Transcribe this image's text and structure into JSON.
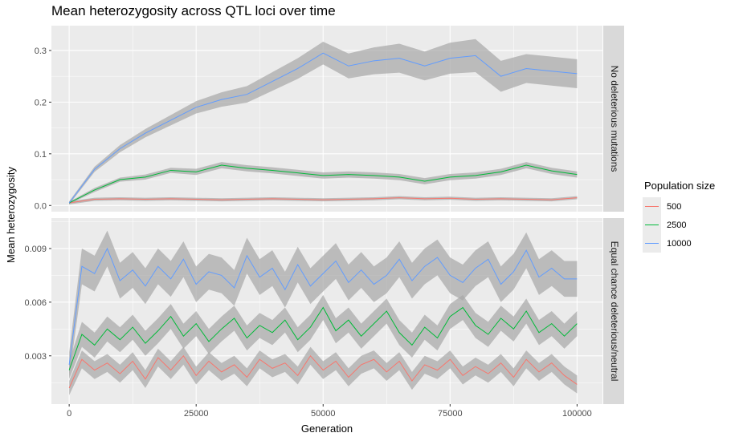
{
  "chart_data": {
    "type": "line",
    "title": "Mean heterozygosity across QTL loci over time",
    "xlabel": "Generation",
    "ylabel": "Mean heterozygosity",
    "xlim": [
      -3500,
      105000
    ],
    "x_ticks": [
      0,
      25000,
      50000,
      75000,
      100000
    ],
    "x_tick_labels": [
      "0",
      "25000",
      "50000",
      "75000",
      "100000"
    ],
    "legend": {
      "title": "Population size",
      "position": "right",
      "entries": [
        {
          "label": "500",
          "color": "#F8766D"
        },
        {
          "label": "2500",
          "color": "#00BA38"
        },
        {
          "label": "10000",
          "color": "#619CFF"
        }
      ]
    },
    "confidence_band_color": "#a6a6a6",
    "panel_background": "#ebebeb",
    "strip_background": "#d9d9d9",
    "grid": true,
    "panels": [
      {
        "strip_label": "No deleterious mutations",
        "ylim": [
          -0.012,
          0.348
        ],
        "y_ticks": [
          0.0,
          0.1,
          0.2,
          0.3
        ],
        "y_tick_labels": [
          "0.0",
          "0.1",
          "0.2",
          "0.3"
        ],
        "series": [
          {
            "name": "500",
            "color": "#F8766D",
            "x": [
              0,
              5000,
              10000,
              15000,
              20000,
              25000,
              30000,
              35000,
              40000,
              45000,
              50000,
              55000,
              60000,
              65000,
              70000,
              75000,
              80000,
              85000,
              90000,
              95000,
              100000
            ],
            "y": [
              0.005,
              0.012,
              0.013,
              0.012,
              0.013,
              0.012,
              0.011,
              0.012,
              0.013,
              0.012,
              0.011,
              0.012,
              0.013,
              0.015,
              0.013,
              0.014,
              0.012,
              0.013,
              0.012,
              0.011,
              0.015
            ],
            "band": [
              0.003,
              0.003,
              0.003,
              0.003,
              0.003,
              0.003,
              0.003,
              0.003,
              0.003,
              0.003,
              0.003,
              0.003,
              0.003,
              0.003,
              0.003,
              0.003,
              0.003,
              0.003,
              0.003,
              0.003,
              0.003
            ]
          },
          {
            "name": "2500",
            "color": "#00BA38",
            "x": [
              0,
              5000,
              10000,
              15000,
              20000,
              25000,
              30000,
              35000,
              40000,
              45000,
              50000,
              55000,
              60000,
              65000,
              70000,
              75000,
              80000,
              85000,
              90000,
              95000,
              100000
            ],
            "y": [
              0.005,
              0.03,
              0.05,
              0.055,
              0.068,
              0.065,
              0.078,
              0.072,
              0.068,
              0.063,
              0.058,
              0.06,
              0.058,
              0.055,
              0.047,
              0.055,
              0.058,
              0.065,
              0.078,
              0.067,
              0.06
            ],
            "band": [
              0.002,
              0.004,
              0.004,
              0.005,
              0.005,
              0.006,
              0.006,
              0.006,
              0.006,
              0.006,
              0.006,
              0.006,
              0.006,
              0.006,
              0.006,
              0.006,
              0.006,
              0.006,
              0.006,
              0.006,
              0.006
            ]
          },
          {
            "name": "10000",
            "color": "#619CFF",
            "x": [
              0,
              5000,
              10000,
              15000,
              20000,
              25000,
              30000,
              35000,
              40000,
              45000,
              50000,
              55000,
              60000,
              65000,
              70000,
              75000,
              80000,
              85000,
              90000,
              95000,
              100000
            ],
            "y": [
              0.005,
              0.07,
              0.11,
              0.14,
              0.165,
              0.19,
              0.205,
              0.215,
              0.24,
              0.265,
              0.295,
              0.27,
              0.28,
              0.285,
              0.27,
              0.285,
              0.29,
              0.25,
              0.265,
              0.26,
              0.255
            ],
            "band": [
              0.003,
              0.005,
              0.007,
              0.008,
              0.01,
              0.012,
              0.014,
              0.016,
              0.018,
              0.02,
              0.022,
              0.024,
              0.026,
              0.028,
              0.028,
              0.03,
              0.032,
              0.03,
              0.028,
              0.028,
              0.028
            ]
          }
        ]
      },
      {
        "strip_label": "Equal chance deleterious/neutral",
        "ylim": [
          0.0003,
          0.0107
        ],
        "y_ticks": [
          0.003,
          0.006,
          0.009
        ],
        "y_tick_labels": [
          "0.003",
          "0.006",
          "0.009"
        ],
        "series": [
          {
            "name": "500",
            "color": "#F8766D",
            "x": [
              0,
              2500,
              5000,
              7500,
              10000,
              12500,
              15000,
              17500,
              20000,
              22500,
              25000,
              27500,
              30000,
              32500,
              35000,
              37500,
              40000,
              42500,
              45000,
              47500,
              50000,
              52500,
              55000,
              57500,
              60000,
              62500,
              65000,
              67500,
              70000,
              72500,
              75000,
              77500,
              80000,
              82500,
              85000,
              87500,
              90000,
              92500,
              95000,
              97500,
              100000
            ],
            "y": [
              0.0012,
              0.0028,
              0.0022,
              0.0026,
              0.002,
              0.0027,
              0.0017,
              0.0029,
              0.0022,
              0.003,
              0.0019,
              0.0027,
              0.0021,
              0.0025,
              0.0018,
              0.0028,
              0.0023,
              0.0026,
              0.0019,
              0.003,
              0.0022,
              0.0027,
              0.0018,
              0.0025,
              0.0028,
              0.0021,
              0.0027,
              0.0016,
              0.0025,
              0.0022,
              0.0028,
              0.0019,
              0.0024,
              0.002,
              0.0026,
              0.0018,
              0.0028,
              0.0021,
              0.0026,
              0.0019,
              0.0014
            ],
            "band": [
              0.0004,
              0.0005,
              0.0005,
              0.0005,
              0.0005,
              0.0005,
              0.0005,
              0.0005,
              0.0005,
              0.0005,
              0.0005,
              0.0005,
              0.0005,
              0.0005,
              0.0005,
              0.0005,
              0.0005,
              0.0005,
              0.0005,
              0.0005,
              0.0005,
              0.0005,
              0.0005,
              0.0005,
              0.0005,
              0.0005,
              0.0005,
              0.0005,
              0.0005,
              0.0005,
              0.0005,
              0.0005,
              0.0005,
              0.0005,
              0.0005,
              0.0005,
              0.0005,
              0.0005,
              0.0005,
              0.0005,
              0.0005
            ]
          },
          {
            "name": "2500",
            "color": "#00BA38",
            "x": [
              0,
              2500,
              5000,
              7500,
              10000,
              12500,
              15000,
              17500,
              20000,
              22500,
              25000,
              27500,
              30000,
              32500,
              35000,
              37500,
              40000,
              42500,
              45000,
              47500,
              50000,
              52500,
              55000,
              57500,
              60000,
              62500,
              65000,
              67500,
              70000,
              72500,
              75000,
              77500,
              80000,
              82500,
              85000,
              87500,
              90000,
              92500,
              95000,
              97500,
              100000
            ],
            "y": [
              0.0022,
              0.0042,
              0.0036,
              0.0045,
              0.0039,
              0.0046,
              0.0037,
              0.0044,
              0.0052,
              0.0041,
              0.0048,
              0.0038,
              0.0045,
              0.0051,
              0.004,
              0.0047,
              0.0043,
              0.005,
              0.0039,
              0.0046,
              0.0057,
              0.0044,
              0.005,
              0.0041,
              0.0048,
              0.0055,
              0.0043,
              0.0036,
              0.0046,
              0.004,
              0.0052,
              0.0057,
              0.0047,
              0.0042,
              0.0051,
              0.0045,
              0.0055,
              0.0043,
              0.0048,
              0.0041,
              0.0048
            ],
            "band": [
              0.0005,
              0.0007,
              0.0007,
              0.0007,
              0.0007,
              0.0007,
              0.0007,
              0.0007,
              0.0007,
              0.0007,
              0.0007,
              0.0007,
              0.0007,
              0.0007,
              0.0007,
              0.0007,
              0.0007,
              0.0007,
              0.0007,
              0.0007,
              0.0007,
              0.0007,
              0.0007,
              0.0007,
              0.0007,
              0.0007,
              0.0007,
              0.0007,
              0.0007,
              0.0007,
              0.0007,
              0.0007,
              0.0007,
              0.0007,
              0.0007,
              0.0007,
              0.0007,
              0.0007,
              0.0007,
              0.0007,
              0.0007
            ]
          },
          {
            "name": "10000",
            "color": "#619CFF",
            "x": [
              0,
              2500,
              5000,
              7500,
              10000,
              12500,
              15000,
              17500,
              20000,
              22500,
              25000,
              27500,
              30000,
              32500,
              35000,
              37500,
              40000,
              42500,
              45000,
              47500,
              50000,
              52500,
              55000,
              57500,
              60000,
              62500,
              65000,
              67500,
              70000,
              72500,
              75000,
              77500,
              80000,
              82500,
              85000,
              87500,
              90000,
              92500,
              95000,
              97500,
              100000
            ],
            "y": [
              0.0025,
              0.008,
              0.0076,
              0.009,
              0.0072,
              0.0078,
              0.0069,
              0.008,
              0.0073,
              0.0084,
              0.007,
              0.0077,
              0.0075,
              0.0068,
              0.0086,
              0.0074,
              0.0079,
              0.0067,
              0.0081,
              0.0069,
              0.0076,
              0.0083,
              0.0071,
              0.0078,
              0.007,
              0.0075,
              0.0084,
              0.0072,
              0.008,
              0.0085,
              0.0075,
              0.0071,
              0.0079,
              0.0084,
              0.007,
              0.0077,
              0.0089,
              0.0074,
              0.0079,
              0.0073,
              0.0073
            ],
            "band": [
              0.0007,
              0.001,
              0.001,
              0.001,
              0.001,
              0.001,
              0.001,
              0.001,
              0.001,
              0.001,
              0.001,
              0.001,
              0.001,
              0.001,
              0.001,
              0.001,
              0.001,
              0.001,
              0.001,
              0.001,
              0.001,
              0.001,
              0.001,
              0.001,
              0.001,
              0.001,
              0.001,
              0.001,
              0.001,
              0.001,
              0.001,
              0.001,
              0.001,
              0.001,
              0.001,
              0.001,
              0.001,
              0.001,
              0.001,
              0.001,
              0.001
            ]
          }
        ]
      }
    ]
  }
}
